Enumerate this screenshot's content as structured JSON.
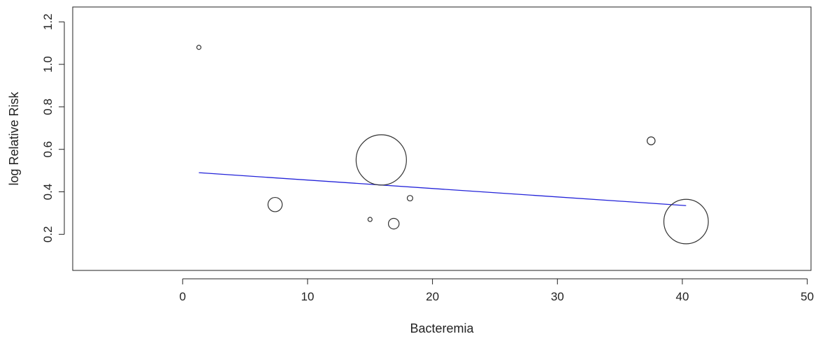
{
  "chart_data": {
    "type": "scatter",
    "title": "",
    "xlabel": "Bacteremia",
    "ylabel": "log Relative Risk",
    "xlim": [
      -8.8,
      50.3
    ],
    "ylim": [
      0.03,
      1.27
    ],
    "x_ticks": [
      0,
      10,
      20,
      30,
      40,
      50
    ],
    "y_ticks": [
      0.2,
      0.4,
      0.6,
      0.8,
      1.0,
      1.2
    ],
    "x_tick_labels": [
      "0",
      "10",
      "20",
      "30",
      "40",
      "50"
    ],
    "y_tick_labels": [
      "0.2",
      "0.4",
      "0.6",
      "0.8",
      "1.0",
      "1.2"
    ],
    "grid": false,
    "legend": "none",
    "bubble_scale": "relative weight (bubble area)",
    "points": [
      {
        "x": 1.3,
        "y": 1.08,
        "weight": 0.6
      },
      {
        "x": 7.4,
        "y": 0.34,
        "weight": 8
      },
      {
        "x": 15.0,
        "y": 0.27,
        "weight": 0.4
      },
      {
        "x": 15.9,
        "y": 0.55,
        "weight": 100
      },
      {
        "x": 16.9,
        "y": 0.25,
        "weight": 4.5
      },
      {
        "x": 18.2,
        "y": 0.37,
        "weight": 1.2
      },
      {
        "x": 37.5,
        "y": 0.64,
        "weight": 2.5
      },
      {
        "x": 40.3,
        "y": 0.26,
        "weight": 78
      }
    ],
    "regression_line": {
      "x": [
        1.3,
        40.3
      ],
      "y": [
        0.49,
        0.335
      ]
    },
    "colors": {
      "points": "#333333",
      "regression": "#2323d9",
      "axes": "#222222"
    }
  }
}
